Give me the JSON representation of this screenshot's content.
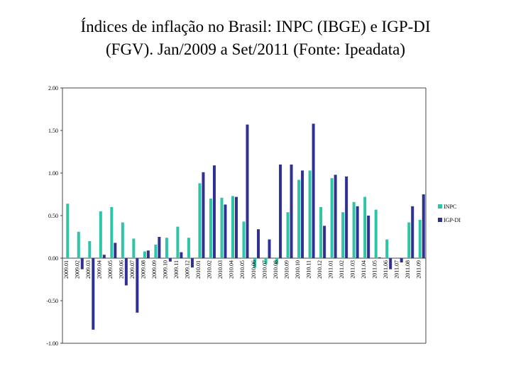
{
  "title_line1": "Índices de inflação no Brasil: INPC (IBGE) e IGP-DI",
  "title_line2": "(FGV). Jan/2009 a Set/2011 (Fonte: Ipeadata)",
  "chart_data": {
    "type": "bar",
    "title": "Índices de inflação no Brasil: INPC (IBGE) e IGP-DI (FGV). Jan/2009 a Set/2011 (Fonte: Ipeadata)",
    "xlabel": "",
    "ylabel": "",
    "ylim": [
      -1.0,
      2.0
    ],
    "yticks": [
      "2.00",
      "1.50",
      "1.00",
      "0.50",
      "0.00",
      "-0.50",
      "-1.00"
    ],
    "ytick_values": [
      2.0,
      1.5,
      1.0,
      0.5,
      0.0,
      -0.5,
      -1.0
    ],
    "legend_position": "right",
    "categories": [
      "2009.01",
      "2009.02",
      "2009.03",
      "2009.04",
      "2009.05",
      "2009.06",
      "2009.07",
      "2009.08",
      "2009.09",
      "2009.10",
      "2009.11",
      "2009.12",
      "2010.01",
      "2010.02",
      "2010.03",
      "2010.04",
      "2010.05",
      "2010.06",
      "2010.07",
      "2010.08",
      "2010.09",
      "2010.10",
      "2010.11",
      "2010.12",
      "2011.01",
      "2011.02",
      "2011.03",
      "2011.04",
      "2011.05",
      "2011.06",
      "2011.07",
      "2011.08",
      "2011.09"
    ],
    "series": [
      {
        "name": "INPC",
        "color": "#2ec4a6",
        "values": [
          0.64,
          0.31,
          0.2,
          0.55,
          0.6,
          0.42,
          0.23,
          0.08,
          0.16,
          0.24,
          0.37,
          0.24,
          0.88,
          0.7,
          0.71,
          0.73,
          0.43,
          -0.11,
          -0.07,
          -0.07,
          0.54,
          0.92,
          1.03,
          0.6,
          0.94,
          0.54,
          0.66,
          0.72,
          0.57,
          0.22,
          0.0,
          0.42,
          0.45
        ]
      },
      {
        "name": "IGP-DI",
        "color": "#2e3192",
        "values": [
          0.0,
          -0.13,
          -0.84,
          0.04,
          0.18,
          -0.32,
          -0.64,
          0.09,
          0.25,
          -0.04,
          0.07,
          -0.11,
          1.01,
          1.09,
          0.63,
          0.72,
          1.57,
          0.34,
          0.22,
          1.1,
          1.1,
          1.03,
          1.58,
          0.38,
          0.98,
          0.96,
          0.61,
          0.5,
          0.01,
          -0.13,
          -0.05,
          0.61,
          0.75
        ]
      }
    ]
  }
}
